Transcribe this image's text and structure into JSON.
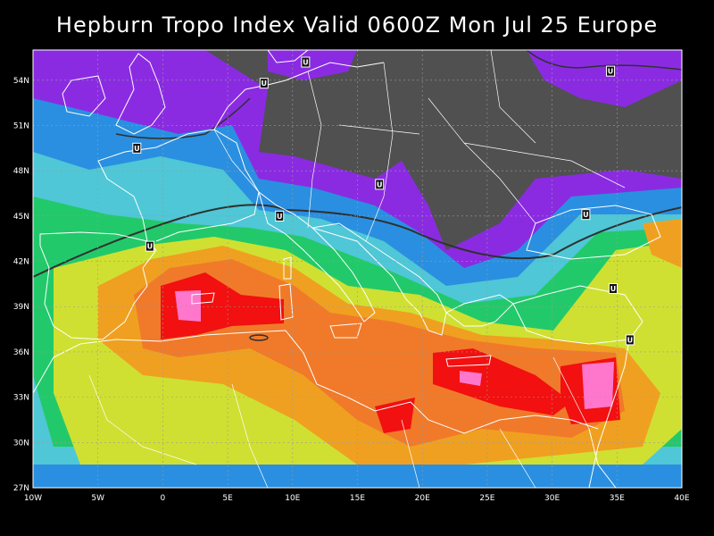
{
  "title": "Hepburn Tropo Index Valid 0600Z Mon Jul 25 Europe",
  "map": {
    "background_color": "#505050",
    "coastline_color": "#ffffff",
    "grid": true,
    "longitude_labels": [
      "10W",
      "5W",
      "0",
      "5E",
      "10E",
      "15E",
      "20E",
      "25E",
      "30E",
      "35E",
      "40E"
    ],
    "latitude_labels": [
      "54N",
      "51N",
      "48N",
      "45N",
      "42N",
      "39N",
      "36N",
      "33N",
      "30N",
      "27N"
    ],
    "lon_range": [
      -10,
      40
    ],
    "lat_range": [
      27,
      56
    ]
  },
  "color_scale": [
    "#8a2be2",
    "#2a8fe0",
    "#4fc7d6",
    "#22c96a",
    "#cfe032",
    "#f0a020",
    "#f07a2a",
    "#f21010",
    "#ff77cc"
  ],
  "trough_label": "U",
  "trough_markers": [
    {
      "lon": 11,
      "lat": 55.2
    },
    {
      "lon": 7.8,
      "lat": 53.8
    },
    {
      "lon": 34.5,
      "lat": 54.6
    },
    {
      "lon": -2,
      "lat": 49.5
    },
    {
      "lon": 16.7,
      "lat": 47.1
    },
    {
      "lon": 9,
      "lat": 45
    },
    {
      "lon": 32.6,
      "lat": 45.1
    },
    {
      "lon": -1,
      "lat": 43
    },
    {
      "lon": 34.7,
      "lat": 40.2
    },
    {
      "lon": 36,
      "lat": 36.8
    }
  ]
}
